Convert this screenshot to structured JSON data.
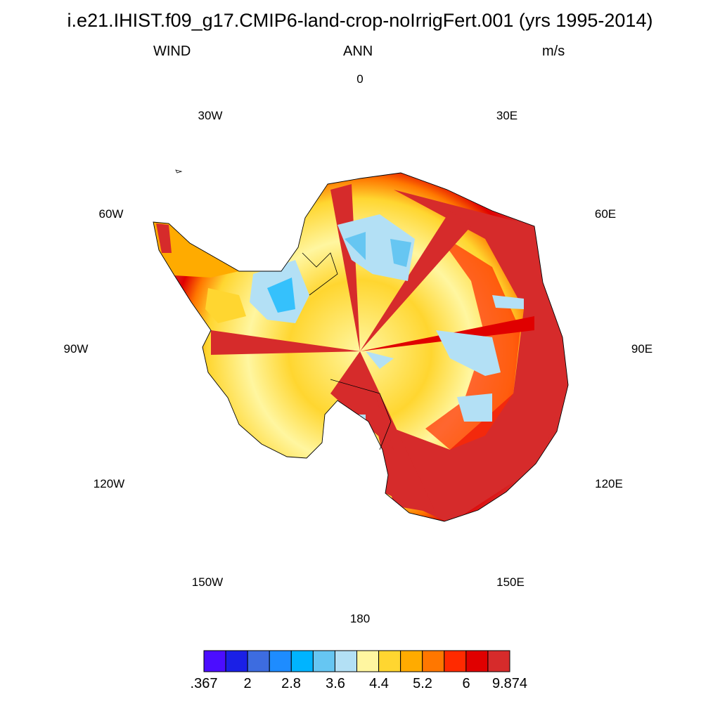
{
  "title": "i.e21.IHIST.f09_g17.CMIP6-land-crop-noIrrigFert.001 (yrs 1995-2014)",
  "subtitle": {
    "left": "WIND",
    "center": "ANN",
    "right": "m/s"
  },
  "longitude_labels": [
    "0",
    "30E",
    "60E",
    "90E",
    "120E",
    "150E",
    "180",
    "150W",
    "120W",
    "90W",
    "60W",
    "30W"
  ],
  "colorbar": {
    "colors": [
      "#4b0dff",
      "#1a20e6",
      "#3d6ce0",
      "#1e8cff",
      "#00b4ff",
      "#66c6f2",
      "#b3e0f5",
      "#fff6a0",
      "#ffd630",
      "#ffab00",
      "#ff7700",
      "#ff2a00",
      "#e00000",
      "#d62b2b"
    ],
    "labels": [
      ".367",
      "2",
      "2.8",
      "3.6",
      "4.4",
      "5.2",
      "6",
      "9.874"
    ]
  },
  "map": {
    "projection": "south polar stereographic",
    "region": "Antarctica",
    "variable": "WIND",
    "units": "m/s"
  }
}
